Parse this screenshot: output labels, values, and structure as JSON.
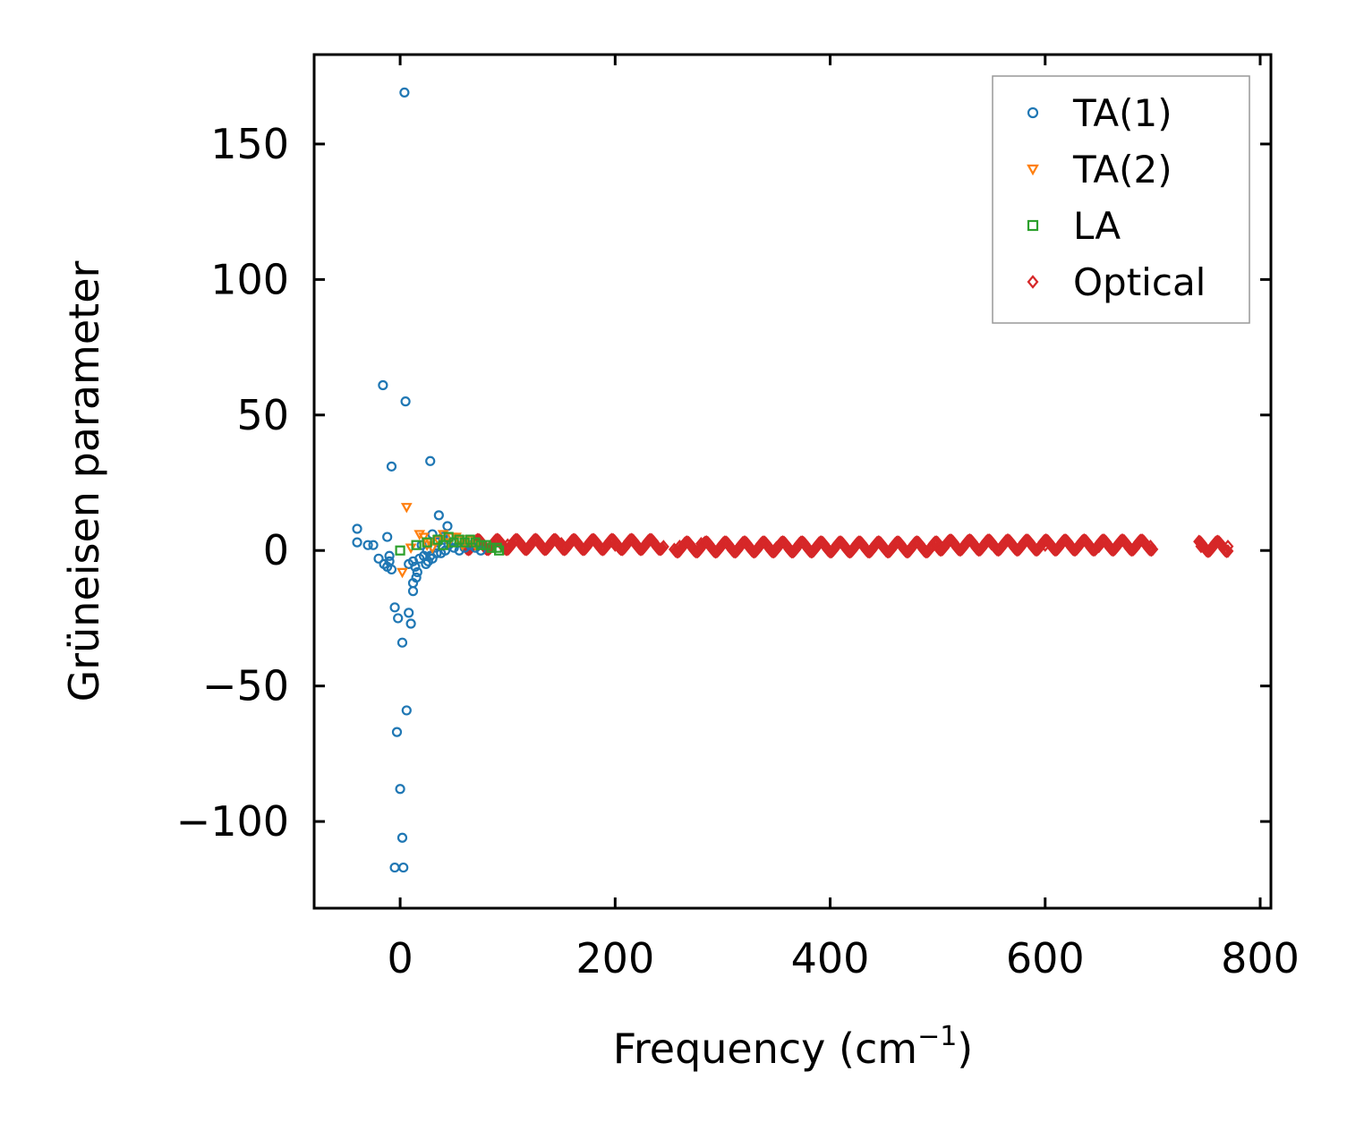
{
  "chart_data": {
    "type": "scatter",
    "title": "",
    "xlabel": "Frequency (cm",
    "xlabel_sup": "−1",
    "xlabel_suffix": ")",
    "ylabel": "Grüneisen parameter",
    "xlim": [
      -80,
      810
    ],
    "ylim": [
      -132,
      183
    ],
    "xticks": [
      0,
      200,
      400,
      600,
      800
    ],
    "xtick_labels": [
      "0",
      "200",
      "400",
      "600",
      "800"
    ],
    "yticks": [
      -100,
      -50,
      0,
      50,
      100,
      150
    ],
    "ytick_labels": [
      "−100",
      "−50",
      "0",
      "50",
      "100",
      "150"
    ],
    "grid": false,
    "legend_position": "top-right",
    "series": [
      {
        "name": "TA(1)",
        "marker": "circle",
        "color": "#1f77b4",
        "x": [
          4,
          -16,
          5,
          -8,
          28,
          -40,
          -40,
          -12,
          -30,
          -25,
          -20,
          -10,
          -15,
          -12,
          -8,
          -10,
          -5,
          -2,
          -3,
          8,
          10,
          12,
          15,
          12,
          8,
          2,
          6,
          0,
          2,
          3,
          -5,
          36,
          44,
          30,
          20,
          25,
          28,
          32,
          35,
          38,
          40,
          45,
          50,
          55,
          60,
          65,
          70,
          75,
          18,
          22,
          26,
          34,
          42,
          48,
          16,
          14,
          12,
          24,
          30,
          40
        ],
        "y": [
          169,
          61,
          55,
          31,
          33,
          8,
          3,
          5,
          2,
          2,
          -3,
          -2,
          -5,
          -6,
          -7,
          -4,
          -21,
          -25,
          -67,
          -23,
          -27,
          -15,
          -10,
          -12,
          -5,
          -34,
          -59,
          -88,
          -106,
          -117,
          -117,
          13,
          9,
          6,
          2,
          0,
          -2,
          1,
          3,
          -1,
          4,
          2,
          1,
          0,
          1,
          2,
          1,
          0,
          -3,
          -2,
          -4,
          -1,
          0,
          3,
          -8,
          -6,
          -4,
          -5,
          -3,
          5
        ]
      },
      {
        "name": "TA(2)",
        "marker": "triangle-down",
        "color": "#ff7f0e",
        "x": [
          6,
          2,
          18,
          22,
          28,
          35,
          40,
          48,
          55,
          60,
          65,
          70,
          10,
          25,
          30,
          45,
          52,
          58
        ],
        "y": [
          16,
          -8,
          6,
          5,
          3,
          4,
          6,
          5,
          4,
          3,
          4,
          2,
          1,
          2,
          1,
          3,
          5,
          2
        ],
        "points_x": [],
        "points_y": []
      },
      {
        "name": "LA",
        "marker": "square",
        "color": "#2ca02c",
        "x": [
          0,
          15,
          25,
          35,
          45,
          55,
          60,
          65,
          70,
          75,
          80,
          85,
          90,
          92,
          50,
          40
        ],
        "y": [
          0,
          2,
          3,
          4,
          5,
          4,
          3,
          4,
          3,
          2,
          2,
          1,
          1,
          0,
          3,
          2
        ]
      },
      {
        "name": "Optical",
        "marker": "diamond",
        "color": "#d62728",
        "x": [
          60,
          100,
          150,
          200,
          240,
          260,
          280,
          350,
          450,
          500,
          550,
          600,
          650,
          698,
          745,
          770
        ],
        "y": [
          2,
          2,
          2.5,
          2,
          1,
          1.5,
          2.5,
          1,
          1,
          2.5,
          2.5,
          2,
          1.5,
          1.5,
          1.5,
          1.5
        ],
        "bands": [
          {
            "x_start": 60,
            "x_end": 245,
            "y_center": 2.2
          },
          {
            "x_start": 255,
            "x_end": 500,
            "y_center": 1.3
          },
          {
            "x_start": 500,
            "x_end": 700,
            "y_center": 2
          },
          {
            "x_start": 743,
            "x_end": 770,
            "y_center": 1.5
          }
        ]
      }
    ]
  }
}
